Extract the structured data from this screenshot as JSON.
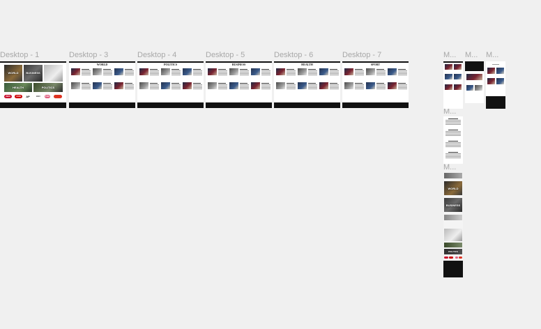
{
  "canvas": {
    "frames": [
      {
        "label": "Desktop - 1"
      },
      {
        "label": "Desktop - 3",
        "section": "WORLD"
      },
      {
        "label": "Desktop - 4",
        "section": "POLITICS"
      },
      {
        "label": "Desktop - 5",
        "section": "BUSINESS"
      },
      {
        "label": "Desktop - 6",
        "section": "HEALTH"
      },
      {
        "label": "Desktop - 7",
        "section": "SPORT"
      },
      {
        "label": "M..."
      },
      {
        "label": "M..."
      },
      {
        "label": "M..."
      },
      {
        "label": "M..."
      },
      {
        "label": "M..."
      }
    ]
  },
  "home": {
    "tiles": [
      "WORLD",
      "BUSINESS",
      "HEALTH",
      "POLITICS"
    ],
    "logos": [
      "ABC",
      "CNN",
      "AP",
      "BBC",
      "FOX"
    ]
  },
  "mobile": {
    "tiles": [
      "WORLD",
      "BUSINESS",
      "POLITICS"
    ]
  }
}
